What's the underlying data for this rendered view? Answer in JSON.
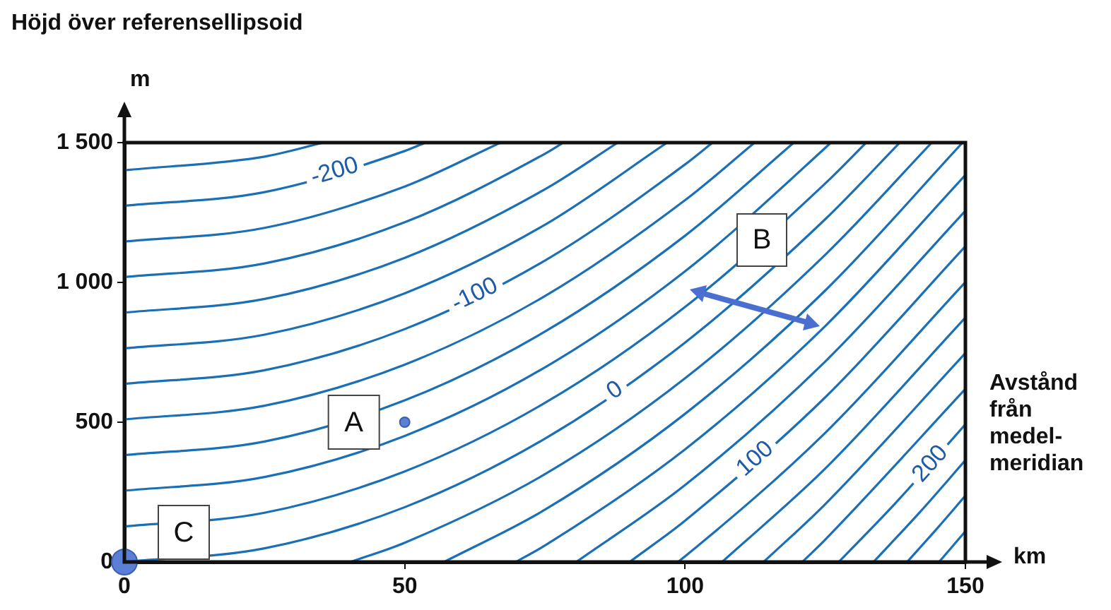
{
  "chart_data": {
    "type": "line",
    "title": "Höjd över referensellipsoid",
    "xlabel": "km",
    "ylabel": "m",
    "xlim": [
      0,
      150
    ],
    "xticks": [
      0,
      50,
      100,
      150
    ],
    "ylim": [
      0,
      1500
    ],
    "yticks": [
      0,
      500,
      {
        "value": 1000,
        "label": "1 000"
      },
      {
        "value": 1500,
        "label": "1 500"
      }
    ],
    "grid": false,
    "legend": false,
    "annotations": [
      "Avstånd från medel-meridian",
      "B",
      {
        "text": "A",
        "x": 50,
        "y": 500
      },
      {
        "text": "C",
        "x": 0,
        "y": 0
      }
    ],
    "series": [
      {
        "color": "#1a6fb5",
        "x": [
          0,
          25,
          35.5
        ],
        "values": [
          1401,
          1450,
          1500
        ]
      },
      {
        "name": "-200",
        "color": "#1a6fb5",
        "x": [
          0,
          25,
          50,
          53.7
        ],
        "values": [
          1274,
          1323,
          1470,
          1500
        ]
      },
      {
        "color": "#1a6fb5",
        "x": [
          0,
          25,
          50,
          67.1
        ],
        "values": [
          1146,
          1195,
          1343,
          1500
        ]
      },
      {
        "color": "#1a6fb5",
        "x": [
          0,
          25,
          50,
          75,
          78.3
        ],
        "values": [
          1019,
          1068,
          1215,
          1460,
          1500
        ]
      },
      {
        "color": "#1a6fb5",
        "x": [
          0,
          25,
          50,
          75,
          88
        ],
        "values": [
          892,
          941,
          1088,
          1333,
          1500
        ]
      },
      {
        "color": "#1a6fb5",
        "x": [
          0,
          25,
          50,
          75,
          96.8
        ],
        "values": [
          764,
          813,
          961,
          1206,
          1500
        ]
      },
      {
        "name": "-100",
        "color": "#1a6fb5",
        "x": [
          0,
          25,
          50,
          75,
          100,
          104.9
        ],
        "values": [
          637,
          686,
          833,
          1078,
          1422,
          1500
        ]
      },
      {
        "color": "#1a6fb5",
        "x": [
          0,
          25,
          50,
          75,
          100,
          112.4
        ],
        "values": [
          510,
          559,
          706,
          951,
          1294,
          1500
        ]
      },
      {
        "color": "#1a6fb5",
        "x": [
          0,
          25,
          50,
          75,
          100,
          119.4
        ],
        "values": [
          382,
          431,
          578,
          824,
          1167,
          1500
        ]
      },
      {
        "color": "#1a6fb5",
        "x": [
          0,
          25,
          50,
          75,
          100,
          125,
          126
        ],
        "values": [
          255,
          304,
          451,
          696,
          1040,
          1481,
          1500
        ]
      },
      {
        "color": "#1a6fb5",
        "x": [
          0,
          25,
          50,
          75,
          100,
          125,
          132.3
        ],
        "values": [
          127,
          176,
          324,
          569,
          912,
          1354,
          1500
        ]
      },
      {
        "name": "0",
        "color": "#1a6fb5",
        "x": [
          0,
          25,
          50,
          75,
          100,
          125,
          138.3
        ],
        "values": [
          0,
          49,
          196,
          441,
          785,
          1226,
          1500
        ]
      },
      {
        "color": "#1a6fb5",
        "x": [
          40.3,
          50,
          75,
          100,
          125,
          144
        ],
        "values": [
          0,
          69,
          314,
          657,
          1099,
          1500
        ]
      },
      {
        "color": "#1a6fb5",
        "x": [
          57,
          75,
          100,
          125,
          149.5
        ],
        "values": [
          0,
          187,
          530,
          971,
          1500
        ]
      },
      {
        "color": "#1a6fb5",
        "x": [
          69.8,
          75,
          100,
          125,
          150
        ],
        "values": [
          0,
          59,
          403,
          844,
          1384
        ]
      },
      {
        "color": "#1a6fb5",
        "x": [
          80.6,
          100,
          125,
          150
        ],
        "values": [
          0,
          275,
          717,
          1256
        ]
      },
      {
        "name": "100",
        "color": "#1a6fb5",
        "x": [
          90.1,
          100,
          125,
          150
        ],
        "values": [
          0,
          148,
          589,
          1129
        ]
      },
      {
        "color": "#1a6fb5",
        "x": [
          98.7,
          100,
          125,
          150
        ],
        "values": [
          0,
          20,
          462,
          1001
        ]
      },
      {
        "color": "#1a6fb5",
        "x": [
          106.6,
          125,
          150
        ],
        "values": [
          0,
          334,
          874
        ]
      },
      {
        "color": "#1a6fb5",
        "x": [
          114,
          125,
          150
        ],
        "values": [
          0,
          207,
          747
        ]
      },
      {
        "color": "#1a6fb5",
        "x": [
          120.9,
          125,
          150
        ],
        "values": [
          0,
          80,
          619
        ]
      },
      {
        "name": "200",
        "color": "#1a6fb5",
        "x": [
          127.4,
          137.5,
          150
        ],
        "values": [
          0,
          210,
          492
        ]
      },
      {
        "color": "#1a6fb5",
        "x": [
          133.6,
          142,
          150
        ],
        "values": [
          0,
          181,
          364
        ]
      },
      {
        "color": "#1a6fb5",
        "x": [
          139.6,
          145,
          150
        ],
        "values": [
          0,
          121,
          237
        ]
      },
      {
        "color": "#1a6fb5",
        "x": [
          145.3,
          150
        ],
        "values": [
          0,
          110
        ]
      },
      {
        "type": "scatter",
        "color": "#5b7fd6",
        "x": [
          50,
          0
        ],
        "values": [
          500,
          0
        ]
      }
    ]
  }
}
